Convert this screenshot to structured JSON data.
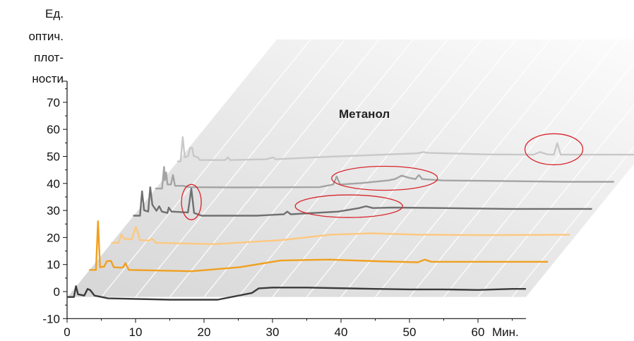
{
  "chart_data": {
    "type": "line",
    "title": "",
    "ylabel_lines": [
      "Ед.",
      "оптич.",
      "плот-",
      "ности"
    ],
    "xlabel": "Мин.",
    "annotation": "Метанол",
    "xlim": [
      0,
      67
    ],
    "ylim": [
      -10,
      78
    ],
    "x_ticks": [
      0,
      10,
      20,
      30,
      40,
      50,
      60
    ],
    "y_ticks": [
      -10,
      0,
      10,
      20,
      30,
      40,
      50,
      60,
      70
    ],
    "colors": {
      "trace0": "#3a3a3a",
      "trace1": "#f0a020",
      "trace2": "#fcc880",
      "trace3": "#707070",
      "trace4": "#a4a4a4",
      "trace5": "#c8c8c8",
      "highlight": "#d8262c"
    },
    "series": [
      {
        "values": [
          [
            0,
            -2
          ],
          [
            1,
            -2
          ],
          [
            1.3,
            2
          ],
          [
            1.6,
            -1
          ],
          [
            2.5,
            -1.5
          ],
          [
            3,
            1
          ],
          [
            3.4,
            0.5
          ],
          [
            4,
            -1.5
          ],
          [
            6,
            -2.5
          ],
          [
            15,
            -3
          ],
          [
            22,
            -3
          ],
          [
            27,
            -0.5
          ],
          [
            28,
            1.2
          ],
          [
            30,
            1.5
          ],
          [
            35,
            1.5
          ],
          [
            45,
            1
          ],
          [
            50,
            0.8
          ],
          [
            55,
            0.8
          ],
          [
            60,
            0.6
          ],
          [
            65,
            1
          ],
          [
            67,
            1
          ]
        ]
      },
      {
        "values": [
          [
            0,
            -2
          ],
          [
            1,
            -2
          ],
          [
            1.3,
            16
          ],
          [
            1.6,
            -1
          ],
          [
            2.2,
            -0.8
          ],
          [
            2.6,
            1.2
          ],
          [
            3.2,
            1.3
          ],
          [
            3.6,
            -1
          ],
          [
            4.6,
            -1.2
          ],
          [
            5,
            -1
          ],
          [
            5.3,
            0.5
          ],
          [
            5.8,
            -2
          ],
          [
            15,
            -2.5
          ],
          [
            22,
            -1
          ],
          [
            28,
            1.5
          ],
          [
            35,
            1.8
          ],
          [
            42,
            1.2
          ],
          [
            48,
            0.8
          ],
          [
            49,
            1.8
          ],
          [
            50,
            1
          ],
          [
            60,
            1
          ],
          [
            67,
            1
          ]
        ]
      },
      {
        "values": [
          [
            0,
            -2
          ],
          [
            1.1,
            -2
          ],
          [
            1.5,
            1
          ],
          [
            1.9,
            -0.5
          ],
          [
            3,
            -0.8
          ],
          [
            3.6,
            3.8
          ],
          [
            3.9,
            2
          ],
          [
            4.2,
            -1
          ],
          [
            5.5,
            -1.2
          ],
          [
            6,
            -0.5
          ],
          [
            6.5,
            -2
          ],
          [
            15,
            -2.5
          ],
          [
            25,
            -1
          ],
          [
            32,
            1
          ],
          [
            38,
            1.5
          ],
          [
            45,
            1
          ],
          [
            55,
            0.8
          ],
          [
            67,
            1
          ]
        ]
      },
      {
        "values": [
          [
            0,
            -2
          ],
          [
            1,
            -2
          ],
          [
            1.3,
            7
          ],
          [
            1.6,
            0
          ],
          [
            2.2,
            -0.5
          ],
          [
            2.5,
            8.5
          ],
          [
            2.8,
            2
          ],
          [
            3.4,
            -0.2
          ],
          [
            3.8,
            1.5
          ],
          [
            4.2,
            -0.5
          ],
          [
            5,
            -1
          ],
          [
            5.2,
            1
          ],
          [
            5.6,
            -0.5
          ],
          [
            8,
            -0.8
          ],
          [
            8.5,
            8
          ],
          [
            8.9,
            -1
          ],
          [
            10,
            -2
          ],
          [
            18,
            -2
          ],
          [
            22,
            -1.5
          ],
          [
            22.5,
            -0.5
          ],
          [
            23,
            -1.5
          ],
          [
            30,
            -0.5
          ],
          [
            33,
            0.8
          ],
          [
            34,
            1.5
          ],
          [
            35,
            0.8
          ],
          [
            38,
            1
          ],
          [
            45,
            0.8
          ],
          [
            55,
            0.5
          ],
          [
            67,
            0.5
          ]
        ]
      },
      {
        "values": [
          [
            0,
            -2
          ],
          [
            1,
            -2
          ],
          [
            1.3,
            6
          ],
          [
            1.4,
            1
          ],
          [
            1.6,
            4
          ],
          [
            1.8,
            -0.5
          ],
          [
            2.3,
            -0.5
          ],
          [
            2.6,
            3
          ],
          [
            2.9,
            -1
          ],
          [
            4,
            -1
          ],
          [
            5,
            -1.5
          ],
          [
            12,
            -1.6
          ],
          [
            24,
            -1.5
          ],
          [
            26,
            -0.5
          ],
          [
            26.5,
            2.5
          ],
          [
            27,
            -0.5
          ],
          [
            30,
            0
          ],
          [
            34,
            1
          ],
          [
            35,
            1.5
          ],
          [
            36,
            2.8
          ],
          [
            37,
            2
          ],
          [
            38,
            1.5
          ],
          [
            38.5,
            3
          ],
          [
            39,
            1.5
          ],
          [
            42,
            1
          ],
          [
            50,
            0.8
          ],
          [
            60,
            0.5
          ],
          [
            67,
            0.5
          ]
        ]
      },
      {
        "values": [
          [
            0,
            -2
          ],
          [
            0.5,
            -2
          ],
          [
            0.8,
            7
          ],
          [
            1.1,
            -0.5
          ],
          [
            1.6,
            0
          ],
          [
            1.9,
            3
          ],
          [
            2.2,
            3
          ],
          [
            2.4,
            0
          ],
          [
            3,
            -0.5
          ],
          [
            3.3,
            -1.5
          ],
          [
            7,
            -1.5
          ],
          [
            7.4,
            -0.5
          ],
          [
            7.7,
            -1.5
          ],
          [
            13,
            -1.2
          ],
          [
            14,
            -0.5
          ],
          [
            14.4,
            -1.2
          ],
          [
            22,
            -0.3
          ],
          [
            30,
            0.5
          ],
          [
            35,
            1
          ],
          [
            36,
            1.5
          ],
          [
            36.5,
            1.2
          ],
          [
            45,
            0.6
          ],
          [
            52,
            0.5
          ],
          [
            53,
            1.5
          ],
          [
            53.6,
            1
          ],
          [
            54,
            0.6
          ],
          [
            55,
            0.5
          ],
          [
            55.5,
            4.8
          ],
          [
            56,
            0.5
          ],
          [
            67,
            0.5
          ]
        ]
      }
    ]
  }
}
